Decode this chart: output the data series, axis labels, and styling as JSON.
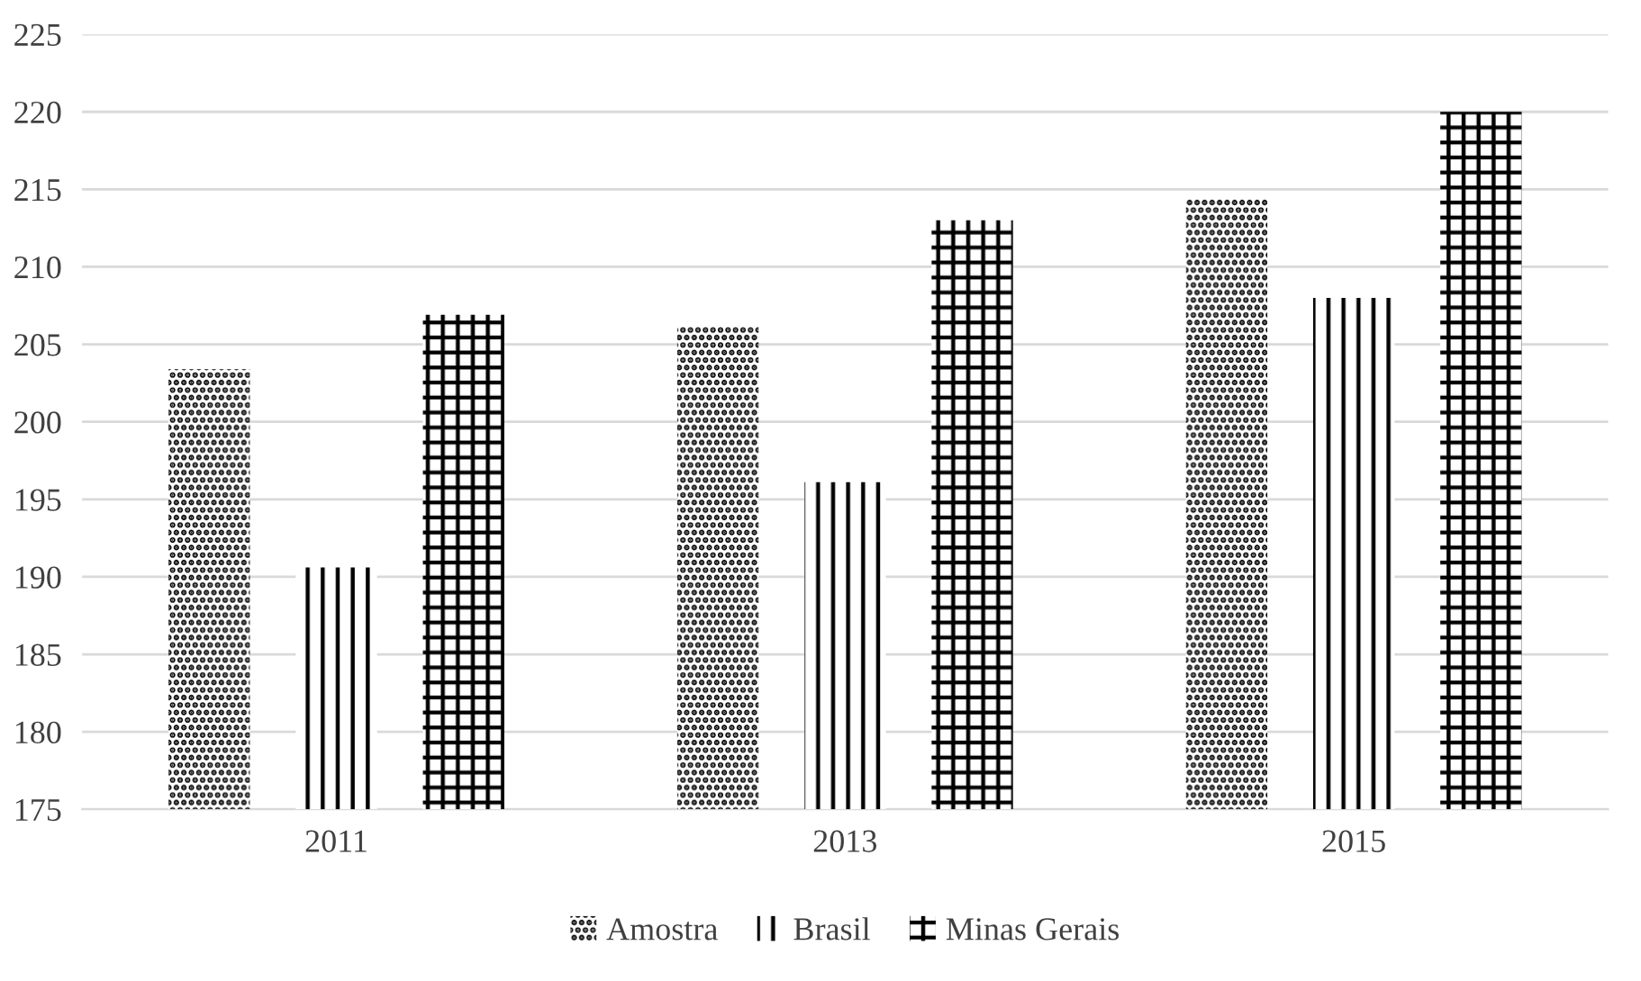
{
  "chart_data": {
    "type": "bar",
    "categories": [
      "2011",
      "2013",
      "2015"
    ],
    "series": [
      {
        "name": "Amostra",
        "color": "#000000",
        "values": [
          203.4,
          206.2,
          214.4
        ]
      },
      {
        "name": "Brasil",
        "color": "#000000",
        "values": [
          190.6,
          196.1,
          208
        ]
      },
      {
        "name": "Minas Gerais",
        "color": "#000000",
        "values": [
          206.9,
          213,
          220
        ]
      }
    ],
    "ylim": [
      175,
      225
    ],
    "yticks": [
      175,
      180,
      185,
      190,
      195,
      200,
      205,
      210,
      215,
      220,
      225
    ],
    "grid": "y",
    "legend": "bottom"
  }
}
